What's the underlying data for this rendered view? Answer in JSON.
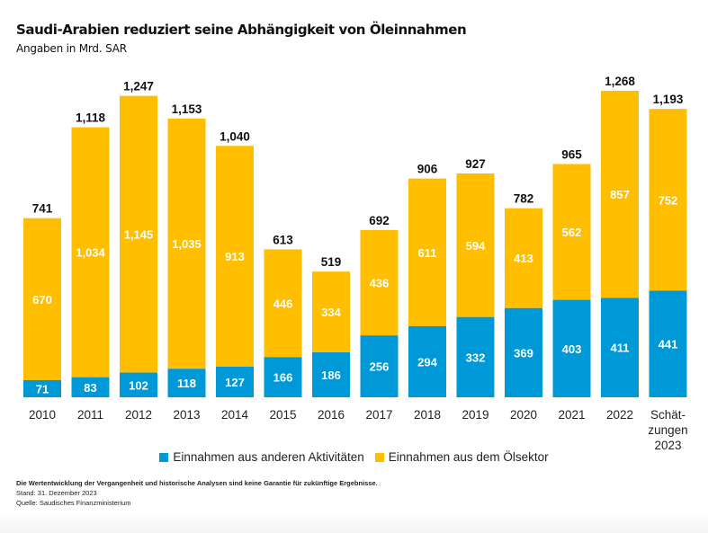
{
  "header": {
    "title": "Saudi-Arabien reduziert seine Abhängigkeit von Öleinnahmen",
    "subtitle": "Angaben in Mrd. SAR"
  },
  "chart_data": {
    "type": "bar",
    "stacked": true,
    "title": "Saudi-Arabien reduziert seine Abhängigkeit von Öleinnahmen",
    "subtitle": "Angaben in Mrd. SAR",
    "xlabel": "",
    "ylabel": "",
    "ylim": [
      0,
      1268
    ],
    "grid": false,
    "categories": [
      "2010",
      "2011",
      "2012",
      "2013",
      "2014",
      "2015",
      "2016",
      "2017",
      "2018",
      "2019",
      "2020",
      "2021",
      "2022",
      "Schät-|zungen|2023"
    ],
    "series": [
      {
        "name": "Einnahmen aus anderen Aktivitäten",
        "color": "#0099D8",
        "values": [
          71,
          83,
          102,
          118,
          127,
          166,
          186,
          256,
          294,
          332,
          369,
          403,
          411,
          441
        ]
      },
      {
        "name": "Einnahmen aus dem Ölsektor",
        "color": "#FFBE00",
        "values": [
          670,
          1034,
          1145,
          1035,
          913,
          446,
          334,
          436,
          611,
          594,
          413,
          562,
          857,
          752
        ]
      }
    ],
    "totals": [
      "741",
      "1,118",
      "1,247",
      "1,153",
      "1,040",
      "613",
      "519",
      "692",
      "906",
      "927",
      "782",
      "965",
      "1,268",
      "1,193"
    ],
    "segment_labels": {
      "other": [
        "71",
        "83",
        "102",
        "118",
        "127",
        "166",
        "186",
        "256",
        "294",
        "332",
        "369",
        "403",
        "411",
        "441"
      ],
      "oil": [
        "670",
        "1,034",
        "1,145",
        "1,035",
        "913",
        "446",
        "334",
        "436",
        "611",
        "594",
        "413",
        "562",
        "857",
        "752"
      ]
    },
    "legend_position": "bottom-center"
  },
  "legend": {
    "items": [
      {
        "label": "Einnahmen aus anderen Aktivitäten",
        "color": "#0099D8"
      },
      {
        "label": "Einnahmen aus dem Ölsektor",
        "color": "#FFBE00"
      }
    ]
  },
  "footer": {
    "disclaimer": "Die Wertentwicklung der Vergangenheit und historische Analysen sind keine Garantie für zukünftige Ergebnisse.",
    "date": "Stand: 31. Dezember 2023",
    "source": "Quelle: Saudisches Finanzministerium"
  }
}
